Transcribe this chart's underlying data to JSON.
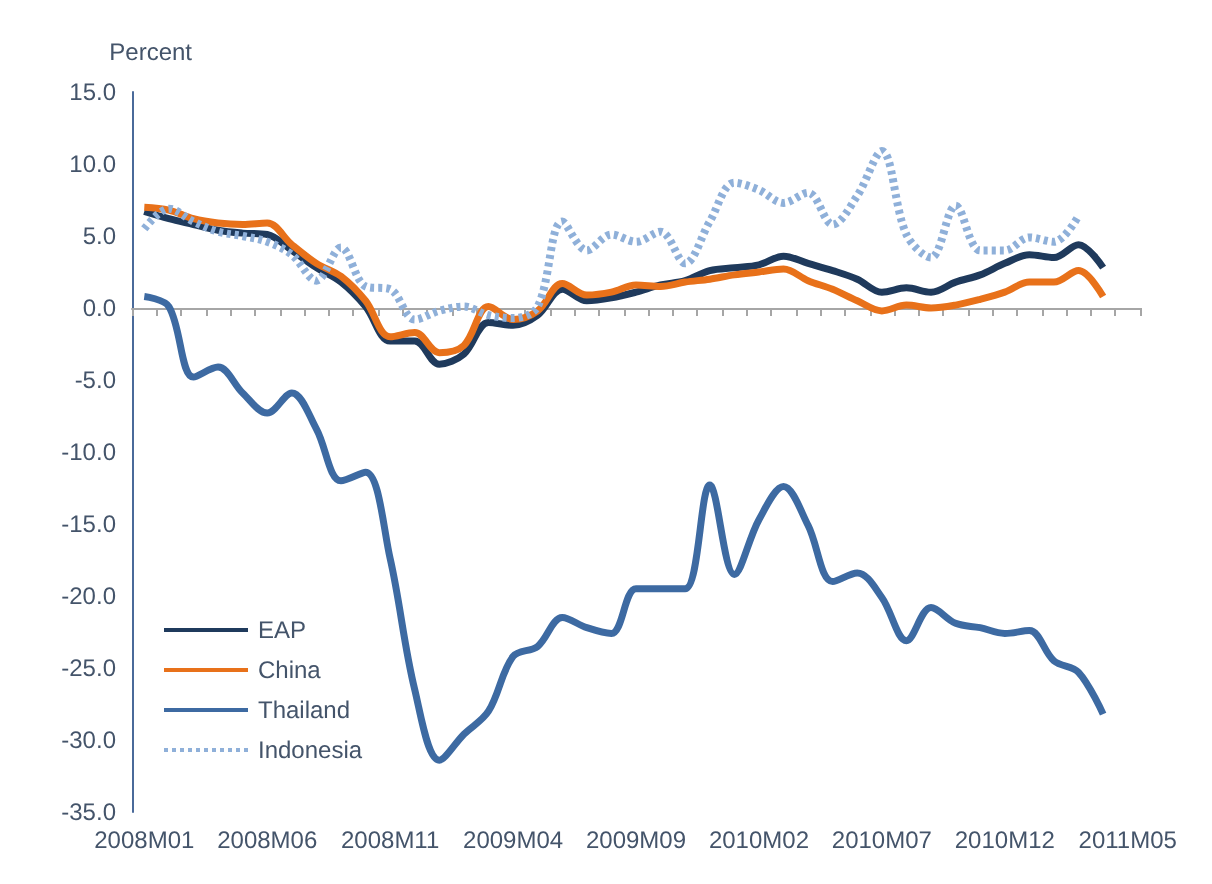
{
  "chart_data": {
    "type": "line",
    "ylabel": "Percent",
    "categories": [
      "2008M01",
      null,
      null,
      null,
      null,
      "2008M06",
      null,
      null,
      null,
      null,
      "2008M11",
      null,
      null,
      null,
      null,
      "2009M04",
      null,
      null,
      null,
      null,
      "2009M09",
      null,
      null,
      null,
      null,
      "2010M02",
      null,
      null,
      null,
      null,
      "2010M07",
      null,
      null,
      null,
      null,
      "2010M12",
      null,
      null,
      null,
      null,
      "2011M05"
    ],
    "series": [
      {
        "name": "EAP",
        "color": "#1f3a5c",
        "values": [
          6.7,
          6.2,
          5.8,
          5.4,
          5.2,
          5.1,
          4.0,
          2.8,
          1.8,
          0.1,
          -2.3,
          -2.3,
          -3.9,
          -3.2,
          -1.0,
          -1.2,
          -0.5,
          1.3,
          0.5,
          0.7,
          1.1,
          1.6,
          1.9,
          2.6,
          2.8,
          3.0,
          3.6,
          3.1,
          2.6,
          2.0,
          1.1,
          1.4,
          1.1,
          1.8,
          2.3,
          3.1,
          3.7,
          3.5,
          4.4,
          2.8,
          null
        ]
      },
      {
        "name": "China",
        "color": "#e8711a",
        "values": [
          7.0,
          6.8,
          6.2,
          5.9,
          5.8,
          5.9,
          4.4,
          3.1,
          2.2,
          0.5,
          -2.0,
          -1.7,
          -3.1,
          -2.6,
          0.1,
          -0.8,
          -0.2,
          1.7,
          0.9,
          1.1,
          1.6,
          1.5,
          1.8,
          2.0,
          2.3,
          2.5,
          2.7,
          1.9,
          1.3,
          0.5,
          -0.2,
          0.2,
          0.0,
          0.2,
          0.6,
          1.1,
          1.8,
          1.8,
          2.6,
          0.8,
          null
        ]
      },
      {
        "name": "Thailand",
        "color": "#3d6aa2",
        "values": [
          0.8,
          0.1,
          -4.8,
          -4.1,
          -5.9,
          -7.3,
          -5.9,
          -8.4,
          -12.0,
          -11.4,
          -17.4,
          -26.5,
          -31.4,
          -29.6,
          -28.0,
          -24.2,
          -23.5,
          -21.5,
          -22.2,
          -22.6,
          -19.5,
          -19.5,
          -19.5,
          -12.3,
          -18.5,
          -14.7,
          -12.4,
          -15.1,
          -19.0,
          -18.4,
          -20.1,
          -23.1,
          -20.8,
          -21.9,
          -22.2,
          -22.6,
          -22.4,
          -24.5,
          -25.3,
          -28.2,
          null
        ]
      },
      {
        "name": "Indonesia",
        "color": "#8fb0d9",
        "line_style": "dotted",
        "values": [
          5.5,
          6.9,
          6.0,
          5.3,
          5.0,
          4.6,
          3.7,
          1.9,
          4.2,
          1.5,
          1.3,
          -0.8,
          -0.2,
          0.1,
          -0.5,
          -0.7,
          0.1,
          6.0,
          4.0,
          5.1,
          4.6,
          5.3,
          3.1,
          6.0,
          8.7,
          8.2,
          7.3,
          8.0,
          5.8,
          7.8,
          10.9,
          5.1,
          3.5,
          7.1,
          4.0,
          4.0,
          4.9,
          4.6,
          6.4,
          null,
          null
        ]
      }
    ],
    "ylim": [
      -35,
      15
    ],
    "yticks": [
      {
        "value": -35,
        "label": "-35.0"
      },
      {
        "value": -30,
        "label": "-30.0"
      },
      {
        "value": -25,
        "label": "-25.0"
      },
      {
        "value": -20,
        "label": "-20.0"
      },
      {
        "value": -15,
        "label": "-15.0"
      },
      {
        "value": -10,
        "label": "-10.0"
      },
      {
        "value": -5,
        "label": "-5.0"
      },
      {
        "value": 0,
        "label": "0.0"
      },
      {
        "value": 5,
        "label": "5.0"
      },
      {
        "value": 10,
        "label": "10.0"
      },
      {
        "value": 15,
        "label": "15.0"
      }
    ],
    "legend": "bottom left",
    "marker": "none",
    "line_style": "solid"
  }
}
